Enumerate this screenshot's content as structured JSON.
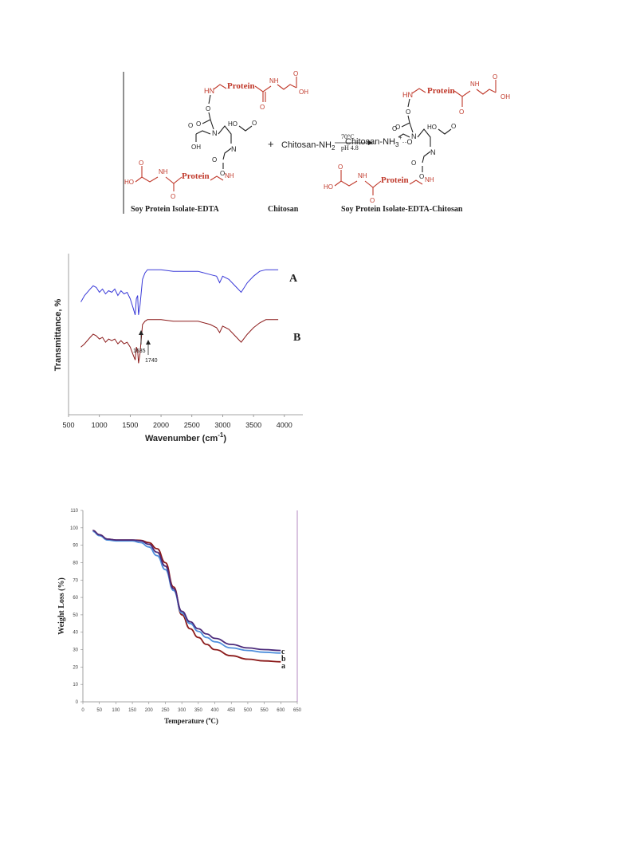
{
  "scheme": {
    "left_label": "Soy Protein Isolate-EDTA",
    "middle_label": "Chitosan",
    "right_label": "Soy Protein Isolate-EDTA-Chitosan",
    "reactant_label": "Chitosan-NH",
    "reactant_sub": "2",
    "plus": "+",
    "condition_temp": "70°C",
    "condition_ph": "pH 4.8",
    "ion_label": "Chitosan-NH",
    "ion_sub": "3",
    "ion_sup": "+",
    "ion_link": "··O",
    "protein": "Protein",
    "hn": "HN",
    "nh": "NH",
    "n": "N",
    "oh": "OH",
    "ho": "HO",
    "o": "O",
    "colors": {
      "red": "#c0392b",
      "black": "#222222"
    }
  },
  "ftir": {
    "chart_data": {
      "type": "line",
      "ylabel": "Transmittance, %",
      "xlabel": "Wavenumber (cm",
      "xlabel_sup": "-1",
      "xlabel_end": ")",
      "xlim": [
        500,
        4300
      ],
      "xticks": [
        "500",
        "1000",
        "1500",
        "2000",
        "2500",
        "3000",
        "3500",
        "4000"
      ],
      "annotations": [
        "1635",
        "1740"
      ],
      "series": [
        {
          "name": "A",
          "color": "#3a3ad8",
          "x": [
            700,
            760,
            850,
            900,
            950,
            1000,
            1050,
            1100,
            1150,
            1200,
            1250,
            1300,
            1350,
            1400,
            1450,
            1500,
            1550,
            1580,
            1600,
            1620,
            1635,
            1660,
            1700,
            1740,
            1780,
            1850,
            2000,
            2200,
            2400,
            2600,
            2800,
            2900,
            2950,
            3000,
            3100,
            3200,
            3300,
            3400,
            3500,
            3600,
            3700,
            3800,
            3900
          ],
          "y": [
            70,
            74,
            78,
            80,
            79,
            76,
            78,
            75,
            77,
            76,
            78,
            74,
            77,
            75,
            76,
            72,
            66,
            62,
            72,
            74,
            62,
            68,
            84,
            88,
            90,
            90,
            90,
            89,
            89,
            89,
            87,
            86,
            82,
            86,
            84,
            80,
            76,
            82,
            86,
            89,
            90,
            90,
            90
          ]
        },
        {
          "name": "B",
          "color": "#8b1a1a",
          "x": [
            700,
            760,
            850,
            900,
            950,
            1000,
            1050,
            1100,
            1150,
            1200,
            1250,
            1300,
            1350,
            1400,
            1450,
            1500,
            1550,
            1580,
            1600,
            1620,
            1635,
            1660,
            1700,
            1740,
            1780,
            1850,
            2000,
            2200,
            2400,
            2600,
            2800,
            2900,
            2950,
            3000,
            3100,
            3200,
            3300,
            3400,
            3500,
            3600,
            3700,
            3800,
            3900
          ],
          "y": [
            42,
            44,
            48,
            50,
            49,
            47,
            48,
            45,
            47,
            46,
            47,
            44,
            46,
            44,
            45,
            42,
            37,
            34,
            42,
            40,
            32,
            38,
            56,
            58,
            59,
            59,
            59,
            58,
            58,
            58,
            56,
            54,
            51,
            55,
            53,
            49,
            45,
            50,
            54,
            57,
            59,
            59,
            59
          ]
        }
      ]
    }
  },
  "tga": {
    "chart_data": {
      "type": "line",
      "ylabel": "Weight Loss (%)",
      "xlabel": "Temperature (",
      "xlabel_sup": "o",
      "xlabel_end": "C)",
      "xlim": [
        0,
        650
      ],
      "ylim": [
        0,
        110
      ],
      "xticks": [
        0,
        50,
        100,
        150,
        200,
        250,
        300,
        350,
        400,
        450,
        500,
        550,
        600,
        650
      ],
      "yticks": [
        0,
        10,
        20,
        30,
        40,
        50,
        60,
        70,
        80,
        90,
        100,
        110
      ],
      "series": [
        {
          "name": "a",
          "color": "#8b1a1a",
          "x": [
            30,
            50,
            75,
            100,
            125,
            150,
            175,
            200,
            225,
            250,
            275,
            300,
            325,
            350,
            375,
            400,
            450,
            500,
            550,
            600
          ],
          "y": [
            98.5,
            96,
            93.5,
            93,
            93,
            93,
            92.8,
            91.5,
            88,
            80,
            66,
            50,
            42,
            37,
            33,
            30,
            26.5,
            24.5,
            23.5,
            23
          ]
        },
        {
          "name": "b",
          "color": "#4f8fdc",
          "x": [
            30,
            50,
            75,
            100,
            125,
            150,
            175,
            200,
            225,
            250,
            275,
            300,
            325,
            350,
            375,
            400,
            450,
            500,
            550,
            600
          ],
          "y": [
            98,
            95.5,
            93,
            92.5,
            92.5,
            92.5,
            91.5,
            89,
            84,
            76,
            64,
            51,
            45,
            40.5,
            37,
            34.5,
            31,
            29.5,
            28.5,
            28
          ]
        },
        {
          "name": "c",
          "color": "#4b2a7a",
          "x": [
            30,
            50,
            75,
            100,
            125,
            150,
            175,
            200,
            225,
            250,
            275,
            300,
            325,
            350,
            375,
            400,
            450,
            500,
            550,
            600
          ],
          "y": [
            98.5,
            96,
            93.5,
            93,
            93,
            93,
            92.5,
            90.5,
            86,
            78,
            65,
            52,
            46,
            42,
            39,
            36.5,
            33,
            31,
            30,
            29.5
          ]
        }
      ]
    }
  }
}
